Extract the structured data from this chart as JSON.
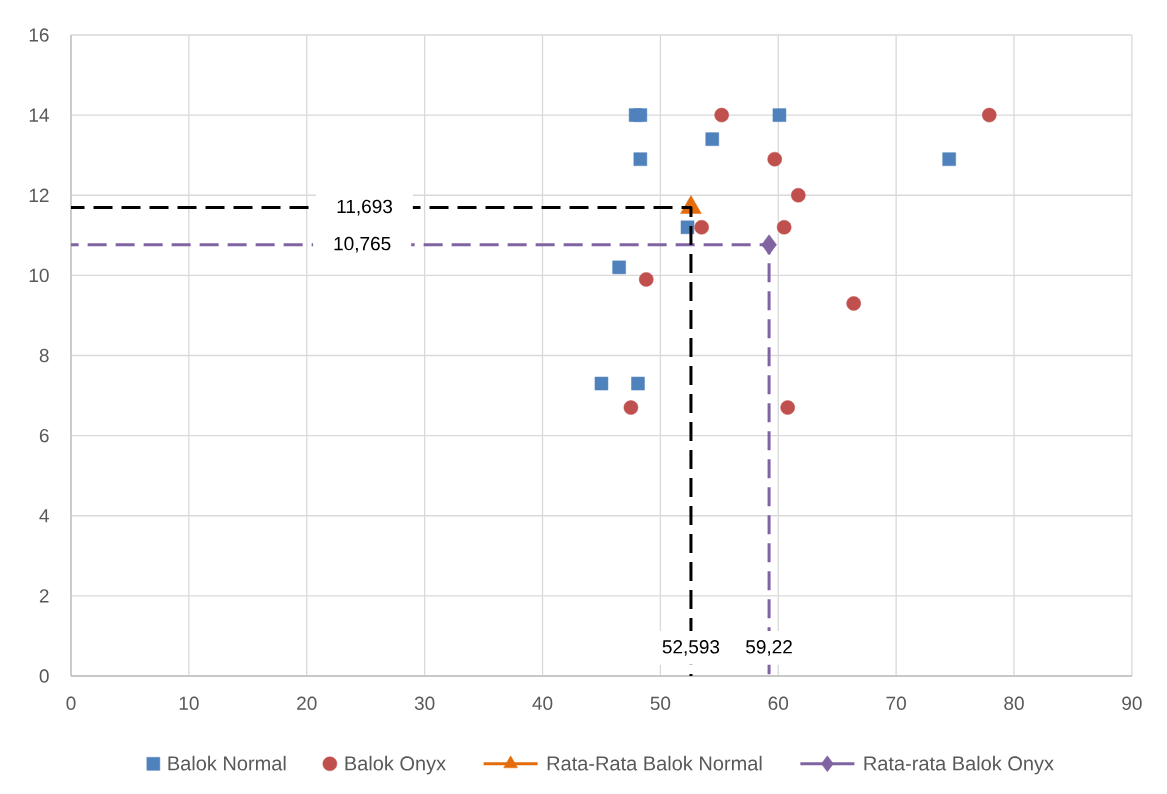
{
  "chart_data": {
    "type": "scatter",
    "xlim": [
      0,
      90
    ],
    "ylim": [
      0,
      16
    ],
    "xticks": [
      0,
      10,
      20,
      30,
      40,
      50,
      60,
      70,
      80,
      90
    ],
    "yticks": [
      0,
      2,
      4,
      6,
      8,
      10,
      12,
      14,
      16
    ],
    "grid": true,
    "legend": "bottom",
    "series": [
      {
        "name": "Balok Normal",
        "color": "#4f81bd",
        "marker": "square",
        "x": [
          47.9,
          48.3,
          48.3,
          54.4,
          60.1,
          52.3,
          46.5,
          45.0,
          48.1,
          74.5
        ],
        "values": [
          14.0,
          14.0,
          12.9,
          13.4,
          14.0,
          11.2,
          10.2,
          7.3,
          7.3,
          12.9
        ]
      },
      {
        "name": "Balok Onyx",
        "color": "#c0504d",
        "marker": "circle",
        "x": [
          55.2,
          59.7,
          61.7,
          60.5,
          53.5,
          48.8,
          47.5,
          60.8,
          66.4,
          77.9
        ],
        "values": [
          14.0,
          12.9,
          12.0,
          11.2,
          11.2,
          9.9,
          6.7,
          6.7,
          9.3,
          14.0
        ]
      },
      {
        "type": "line",
        "color": "#8064a2",
        "marker": "none",
        "line_style": "dashed",
        "x": [
          0,
          59.22,
          59.22
        ],
        "values": [
          10.765,
          10.765,
          0
        ]
      },
      {
        "name": "Rata-Rata Balok Normal",
        "type": "line",
        "color": "#e46c0a",
        "marker": "triangle",
        "x": [
          52.593
        ],
        "values": [
          11.693
        ]
      },
      {
        "name": "Rata-rata Balok Onyx",
        "type": "line",
        "color": "#8064a2",
        "marker": "diamond",
        "x": [
          59.22
        ],
        "values": [
          10.765
        ]
      },
      {
        "type": "line",
        "color": "#000000",
        "marker": "none",
        "line_style": "dashed",
        "x": [
          0,
          52.593,
          52.593
        ],
        "values": [
          11.693,
          11.693,
          0
        ]
      }
    ],
    "annotations": [
      {
        "text": "11,693",
        "x": 24.9,
        "y": 11.693
      },
      {
        "text": "10,765",
        "x": 24.7,
        "y": 10.765
      },
      {
        "text": "52,593",
        "x": 52.593,
        "y": 0.7
      },
      {
        "text": "59,22",
        "x": 59.22,
        "y": 0.7
      }
    ]
  }
}
